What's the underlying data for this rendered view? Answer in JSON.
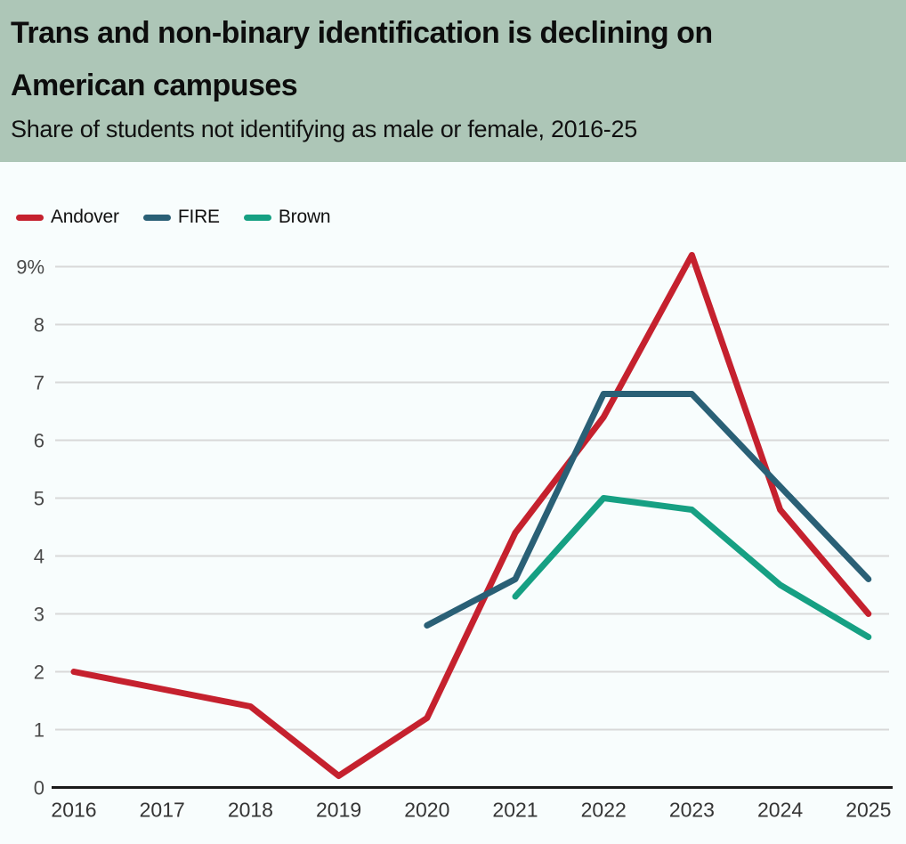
{
  "header": {
    "title_line1": "Trans and non-binary identification is declining on",
    "title_line2": "American campuses",
    "subtitle": "Share of students not identifying as male or female, 2016-25",
    "background": "#adc6b7"
  },
  "legend": {
    "items": [
      {
        "label": "Andover",
        "color": "#c5212e"
      },
      {
        "label": "FIRE",
        "color": "#2a6076"
      },
      {
        "label": "Brown",
        "color": "#16a083"
      }
    ]
  },
  "chart_data": {
    "type": "line",
    "title": "Trans and non-binary identification is declining on American campuses",
    "subtitle": "Share of students not identifying as male or female, 2016-25",
    "x": [
      2016,
      2017,
      2018,
      2019,
      2020,
      2021,
      2022,
      2023,
      2024,
      2025
    ],
    "series": [
      {
        "name": "Andover",
        "color": "#c5212e",
        "values": [
          2.0,
          1.7,
          1.4,
          0.2,
          1.2,
          4.4,
          6.4,
          9.2,
          4.8,
          3.0
        ]
      },
      {
        "name": "FIRE",
        "color": "#2a6076",
        "values": [
          null,
          null,
          null,
          null,
          2.8,
          3.6,
          6.8,
          6.8,
          5.2,
          3.6
        ]
      },
      {
        "name": "Brown",
        "color": "#16a083",
        "values": [
          null,
          null,
          null,
          null,
          null,
          3.3,
          5.0,
          4.8,
          3.5,
          2.6
        ]
      }
    ],
    "xlabel": "",
    "ylabel": "",
    "ylim": [
      0,
      9
    ],
    "yticks": [
      {
        "value": 0,
        "label": "0"
      },
      {
        "value": 1,
        "label": "1"
      },
      {
        "value": 2,
        "label": "2"
      },
      {
        "value": 3,
        "label": "3"
      },
      {
        "value": 4,
        "label": "4"
      },
      {
        "value": 5,
        "label": "5"
      },
      {
        "value": 6,
        "label": "6"
      },
      {
        "value": 7,
        "label": "7"
      },
      {
        "value": 8,
        "label": "8"
      },
      {
        "value": 9,
        "label": "9%"
      }
    ],
    "grid": true,
    "legend_position": "top-left",
    "line_width": 7,
    "colors": {
      "grid": "#d9d9d9",
      "axis": "#1a1a1a",
      "plot_background": "#f8fdfd",
      "header_background": "#adc6b7"
    }
  }
}
